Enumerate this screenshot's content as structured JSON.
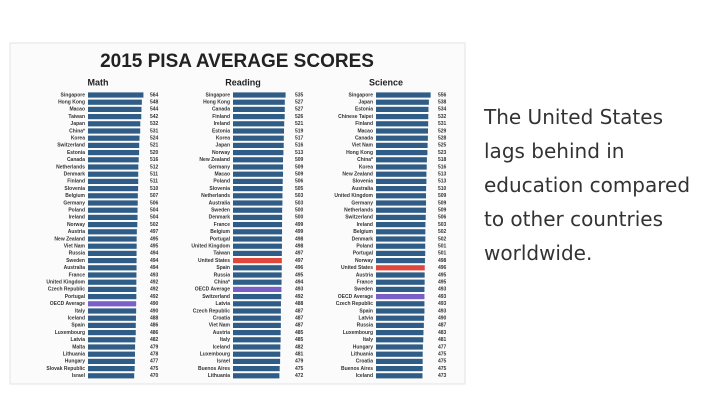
{
  "title": "2015 PISA AVERAGE SCORES",
  "caption": "The United States lags behind in education compared to other countries worldwide.",
  "chart_data": [
    {
      "type": "bar",
      "orientation": "horizontal",
      "title": "Math",
      "color": "#2f5d87",
      "highlight": {
        "OECD Average": "#7b5fc9",
        "United States": "#e0463c"
      },
      "xlim": [
        0,
        580
      ],
      "categories": [
        "Singapore",
        "Hong Kong",
        "Macao",
        "Taiwan",
        "Japan",
        "China*",
        "Korea",
        "Switzerland",
        "Estonia",
        "Canada",
        "Netherlands",
        "Denmark",
        "Finland",
        "Slovenia",
        "Belgium",
        "Germany",
        "Poland",
        "Ireland",
        "Norway",
        "Austria",
        "New Zealand",
        "Viet Nam",
        "Russia",
        "Sweden",
        "Australia",
        "France",
        "United Kingdom",
        "Czech Republic",
        "Portugal",
        "OECD Average",
        "Italy",
        "Iceland",
        "Spain",
        "Luxembourg",
        "Latvia",
        "Malta",
        "Lithuania",
        "Hungary",
        "Slovak Republic",
        "Israel"
      ],
      "values": [
        564,
        548,
        544,
        542,
        532,
        531,
        524,
        521,
        520,
        516,
        512,
        511,
        511,
        510,
        507,
        506,
        504,
        504,
        502,
        497,
        495,
        495,
        494,
        494,
        494,
        493,
        492,
        492,
        492,
        490,
        490,
        488,
        486,
        486,
        482,
        479,
        478,
        477,
        475,
        470
      ]
    },
    {
      "type": "bar",
      "orientation": "horizontal",
      "title": "Reading",
      "color": "#2f5d87",
      "highlight": {
        "OECD Average": "#7b5fc9",
        "United States": "#e0463c"
      },
      "xlim": [
        0,
        580
      ],
      "categories": [
        "Singapore",
        "Hong Kong",
        "Canada",
        "Finland",
        "Ireland",
        "Estonia",
        "Korea",
        "Japan",
        "Norway",
        "New Zealand",
        "Germany",
        "Macao",
        "Poland",
        "Slovenia",
        "Netherlands",
        "Australia",
        "Sweden",
        "Denmark",
        "France",
        "Belgium",
        "Portugal",
        "United Kingdom",
        "Taiwan",
        "United States",
        "Spain",
        "Russia",
        "China*",
        "OECD Average",
        "Switzerland",
        "Latvia",
        "Czech Republic",
        "Croatia",
        "Viet Nam",
        "Austria",
        "Italy",
        "Iceland",
        "Luxembourg",
        "Israel",
        "Buenos Aires",
        "Lithuania"
      ],
      "values": [
        535,
        527,
        527,
        526,
        521,
        519,
        517,
        516,
        513,
        509,
        509,
        509,
        506,
        505,
        503,
        503,
        500,
        500,
        499,
        499,
        498,
        498,
        497,
        497,
        496,
        495,
        494,
        493,
        492,
        488,
        487,
        487,
        487,
        485,
        485,
        482,
        481,
        479,
        475,
        472
      ]
    },
    {
      "type": "bar",
      "orientation": "horizontal",
      "title": "Science",
      "color": "#2f5d87",
      "highlight": {
        "OECD Average": "#7b5fc9",
        "United States": "#e0463c"
      },
      "xlim": [
        0,
        580
      ],
      "categories": [
        "Singapore",
        "Japan",
        "Estonia",
        "Chinese Taipei",
        "Finland",
        "Macao",
        "Canada",
        "Viet Nam",
        "Hong Kong",
        "China*",
        "Korea",
        "New Zealand",
        "Slovenia",
        "Australia",
        "United Kingdom",
        "Germany",
        "Netherlands",
        "Switzerland",
        "Ireland",
        "Belgium",
        "Denmark",
        "Poland",
        "Portugal",
        "Norway",
        "United States",
        "Austria",
        "France",
        "Sweden",
        "OECD Average",
        "Czech Republic",
        "Spain",
        "Latvia",
        "Russia",
        "Luxembourg",
        "Italy",
        "Hungary",
        "Lithuania",
        "Croatia",
        "Buenos Aires",
        "Iceland"
      ],
      "values": [
        556,
        538,
        534,
        532,
        531,
        529,
        528,
        525,
        523,
        518,
        516,
        513,
        513,
        510,
        509,
        509,
        509,
        506,
        503,
        502,
        502,
        501,
        501,
        498,
        496,
        495,
        495,
        493,
        493,
        493,
        493,
        490,
        487,
        483,
        481,
        477,
        475,
        475,
        475,
        473
      ]
    }
  ]
}
